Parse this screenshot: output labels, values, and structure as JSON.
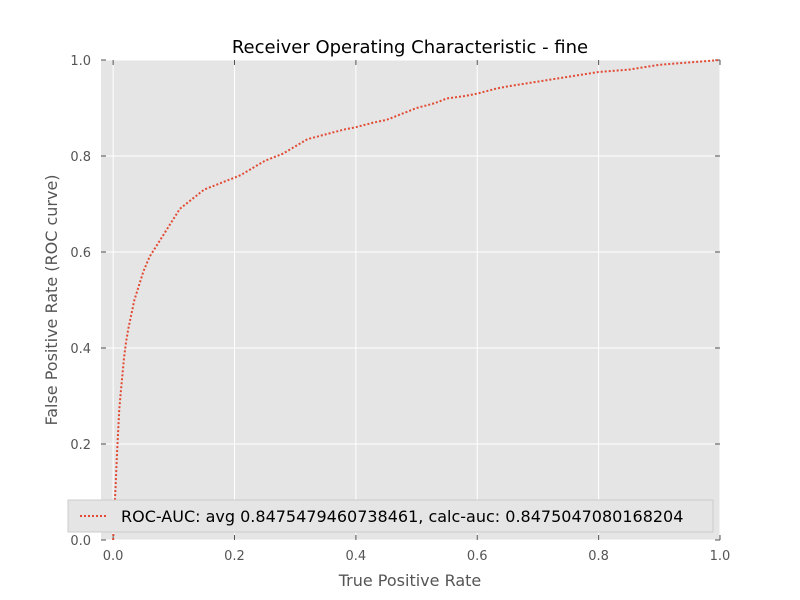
{
  "chart_data": {
    "type": "line",
    "title": "Receiver Operating Characteristic - fine",
    "xlabel": "True Positive Rate",
    "ylabel": "False Positive Rate (ROC curve)",
    "xlim": [
      -0.02,
      1.0
    ],
    "ylim": [
      0.0,
      1.0
    ],
    "xticks": [
      "0.0",
      "0.2",
      "0.4",
      "0.6",
      "0.8",
      "1.0"
    ],
    "yticks": [
      "0.0",
      "0.2",
      "0.4",
      "0.6",
      "0.8",
      "1.0"
    ],
    "grid": true,
    "legend_position": "lower-center",
    "series": [
      {
        "name": "ROC-AUC: avg 0.8475479460738461, calc-auc: 0.8475047080168204",
        "color": "#e24a33",
        "line_style": "dotted",
        "x": [
          0.0,
          0.002,
          0.004,
          0.006,
          0.008,
          0.01,
          0.012,
          0.015,
          0.018,
          0.021,
          0.025,
          0.03,
          0.035,
          0.04,
          0.05,
          0.06,
          0.07,
          0.08,
          0.09,
          0.1,
          0.11,
          0.12,
          0.13,
          0.14,
          0.15,
          0.17,
          0.19,
          0.21,
          0.23,
          0.25,
          0.28,
          0.3,
          0.32,
          0.35,
          0.38,
          0.4,
          0.43,
          0.45,
          0.48,
          0.5,
          0.53,
          0.55,
          0.58,
          0.6,
          0.63,
          0.65,
          0.7,
          0.75,
          0.8,
          0.85,
          0.9,
          0.95,
          1.0
        ],
        "y": [
          0.0,
          0.06,
          0.11,
          0.17,
          0.22,
          0.27,
          0.3,
          0.34,
          0.38,
          0.41,
          0.44,
          0.47,
          0.5,
          0.52,
          0.56,
          0.59,
          0.61,
          0.63,
          0.65,
          0.67,
          0.69,
          0.7,
          0.71,
          0.72,
          0.73,
          0.74,
          0.75,
          0.76,
          0.775,
          0.79,
          0.805,
          0.82,
          0.835,
          0.845,
          0.855,
          0.86,
          0.87,
          0.875,
          0.89,
          0.9,
          0.91,
          0.92,
          0.925,
          0.93,
          0.94,
          0.945,
          0.955,
          0.965,
          0.975,
          0.98,
          0.99,
          0.995,
          1.0
        ]
      }
    ]
  }
}
